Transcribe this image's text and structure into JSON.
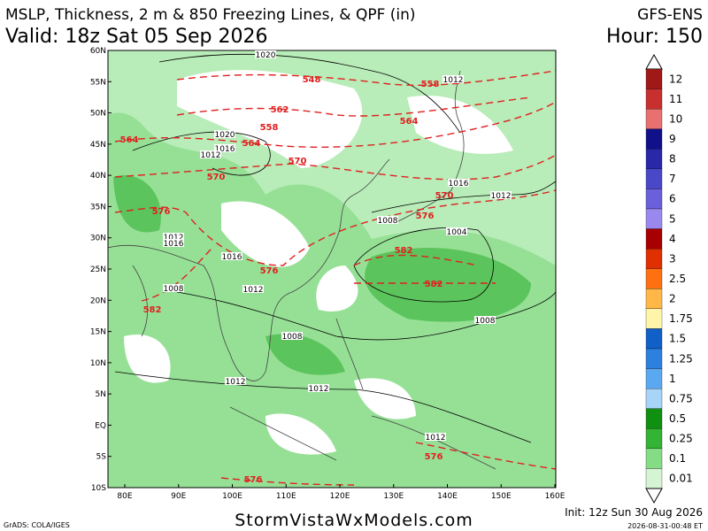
{
  "header": {
    "title": "MSLP, Thickness, 2 m & 850 Freezing Lines, & QPF (in)",
    "model": "GFS-ENS",
    "valid": "Valid: 18z Sat 05 Sep 2026",
    "hour": "Hour: 150"
  },
  "map": {
    "lat_labels": [
      "60N",
      "55N",
      "50N",
      "45N",
      "40N",
      "35N",
      "30N",
      "25N",
      "20N",
      "15N",
      "10N",
      "5N",
      "EQ",
      "5S",
      "10S"
    ],
    "lon_labels": [
      "80E",
      "90E",
      "100E",
      "110E",
      "120E",
      "130E",
      "140E",
      "150E",
      "160E"
    ],
    "isobar_labels": [
      "1020",
      "1012",
      "1020",
      "1016",
      "1012",
      "1016",
      "1012",
      "1008",
      "1004",
      "1012",
      "1016",
      "1016",
      "1008",
      "1012",
      "1008",
      "1008",
      "1012",
      "1012",
      "1012"
    ],
    "thickness_labels": [
      "548",
      "558",
      "562",
      "564",
      "558",
      "564",
      "564",
      "570",
      "570",
      "576",
      "570",
      "576",
      "582",
      "576",
      "582",
      "582",
      "576",
      "576"
    ]
  },
  "colorbar": {
    "labels": [
      "12",
      "11",
      "10",
      "9",
      "8",
      "7",
      "6",
      "5",
      "4",
      "3",
      "2.5",
      "2",
      "1.75",
      "1.5",
      "1.25",
      "1",
      "0.75",
      "0.5",
      "0.25",
      "0.1",
      "0.01"
    ],
    "colors": [
      "#a01818",
      "#c83030",
      "#e87070",
      "#10108a",
      "#2828a8",
      "#4848c8",
      "#6a60dc",
      "#9a88ee",
      "#a80000",
      "#e03000",
      "#ff7010",
      "#ffb848",
      "#fff4a8",
      "#1060c8",
      "#2c80e0",
      "#5aa8f0",
      "#a8d4f8",
      "#109010",
      "#34b434",
      "#84dc84",
      "#d4f4d4"
    ]
  },
  "footer": {
    "grads": "GrADS: COLA/IGES",
    "site": "StormVistaWxModels.com",
    "init": "Init: 12z Sun 30 Aug 2026",
    "stamp": "2026-08-31-00:48 ET"
  }
}
